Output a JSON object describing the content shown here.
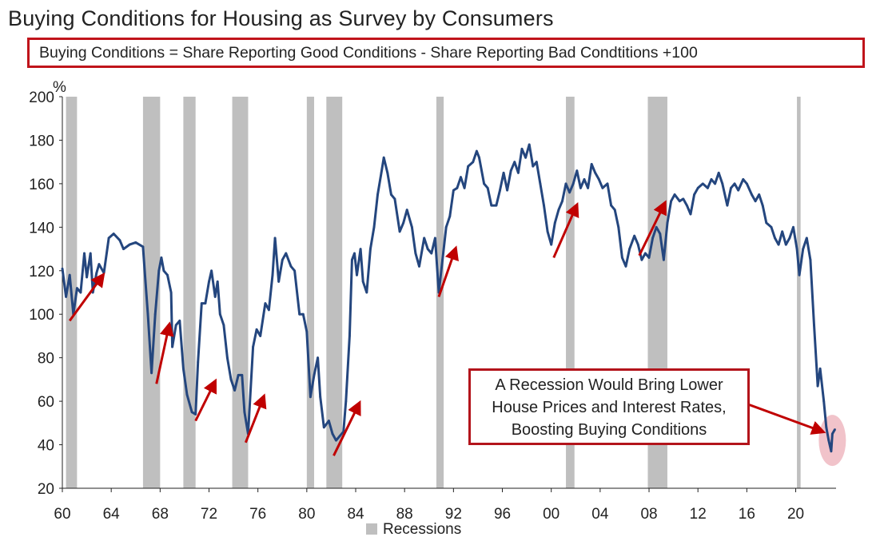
{
  "header": {
    "title": "Buying Conditions for Housing as Survey by Consumers",
    "formula": "Buying Conditions = Share Reporting Good Conditions - Share Reporting Bad Condtitions +100"
  },
  "annotation": {
    "lines": [
      "A Recession Would Bring Lower",
      "House Prices and Interest Rates,",
      "Boosting Buying Conditions"
    ]
  },
  "colors": {
    "line": "#24467e",
    "recession": "#bfbfbf",
    "arrow": "#c00000",
    "highlight": "#efbcc4",
    "annotation_border": "#b3141b"
  },
  "chart_data": {
    "type": "line",
    "title": "Buying Conditions for Housing as Survey by Consumers",
    "ylabel": "%",
    "ylim": [
      20,
      200
    ],
    "xlim": [
      1960,
      2023.3
    ],
    "yticks": [
      20,
      40,
      60,
      80,
      100,
      120,
      140,
      160,
      180,
      200
    ],
    "xticks": [
      {
        "value": 1960,
        "label": "60"
      },
      {
        "value": 1964,
        "label": "64"
      },
      {
        "value": 1968,
        "label": "68"
      },
      {
        "value": 1972,
        "label": "72"
      },
      {
        "value": 1976,
        "label": "76"
      },
      {
        "value": 1980,
        "label": "80"
      },
      {
        "value": 1984,
        "label": "84"
      },
      {
        "value": 1988,
        "label": "88"
      },
      {
        "value": 1992,
        "label": "92"
      },
      {
        "value": 1996,
        "label": "96"
      },
      {
        "value": 2000,
        "label": "00"
      },
      {
        "value": 2004,
        "label": "04"
      },
      {
        "value": 2008,
        "label": "08"
      },
      {
        "value": 2012,
        "label": "12"
      },
      {
        "value": 2016,
        "label": "16"
      },
      {
        "value": 2020,
        "label": "20"
      }
    ],
    "legend": [
      {
        "name": "Recessions",
        "style": "gray-square",
        "position": "bottom"
      }
    ],
    "recessions": [
      [
        1960.3,
        1961.2
      ],
      [
        1966.6,
        1968.0
      ],
      [
        1969.9,
        1970.9
      ],
      [
        1973.9,
        1975.2
      ],
      [
        1980.0,
        1980.6
      ],
      [
        1981.6,
        1982.9
      ],
      [
        1990.6,
        1991.2
      ],
      [
        2001.2,
        2001.9
      ],
      [
        2007.9,
        2009.5
      ],
      [
        2020.1,
        2020.4
      ]
    ],
    "series": [
      {
        "values": [
          [
            1960.0,
            121
          ],
          [
            1960.3,
            108
          ],
          [
            1960.6,
            118
          ],
          [
            1960.9,
            100
          ],
          [
            1961.2,
            112
          ],
          [
            1961.5,
            110
          ],
          [
            1961.8,
            128
          ],
          [
            1962.0,
            117
          ],
          [
            1962.3,
            128
          ],
          [
            1962.5,
            110
          ],
          [
            1962.8,
            119
          ],
          [
            1963.0,
            123
          ],
          [
            1963.4,
            119
          ],
          [
            1963.8,
            135
          ],
          [
            1964.2,
            137
          ],
          [
            1964.7,
            134
          ],
          [
            1965.0,
            130
          ],
          [
            1965.5,
            132
          ],
          [
            1966.0,
            133
          ],
          [
            1966.6,
            131
          ],
          [
            1966.8,
            115
          ],
          [
            1967.0,
            100
          ],
          [
            1967.3,
            73
          ],
          [
            1967.6,
            100
          ],
          [
            1967.9,
            120
          ],
          [
            1968.1,
            126
          ],
          [
            1968.3,
            120
          ],
          [
            1968.6,
            118
          ],
          [
            1968.9,
            110
          ],
          [
            1969.0,
            85
          ],
          [
            1969.3,
            95
          ],
          [
            1969.6,
            97
          ],
          [
            1969.9,
            75
          ],
          [
            1970.2,
            63
          ],
          [
            1970.6,
            55
          ],
          [
            1970.9,
            54
          ],
          [
            1971.1,
            78
          ],
          [
            1971.4,
            105
          ],
          [
            1971.7,
            105
          ],
          [
            1972.0,
            115
          ],
          [
            1972.2,
            120
          ],
          [
            1972.5,
            108
          ],
          [
            1972.7,
            115
          ],
          [
            1972.9,
            100
          ],
          [
            1973.2,
            95
          ],
          [
            1973.5,
            80
          ],
          [
            1973.8,
            70
          ],
          [
            1974.1,
            65
          ],
          [
            1974.4,
            72
          ],
          [
            1974.7,
            72
          ],
          [
            1974.9,
            55
          ],
          [
            1975.2,
            45
          ],
          [
            1975.4,
            65
          ],
          [
            1975.6,
            85
          ],
          [
            1975.9,
            93
          ],
          [
            1976.2,
            90
          ],
          [
            1976.6,
            105
          ],
          [
            1976.9,
            102
          ],
          [
            1977.2,
            118
          ],
          [
            1977.4,
            135
          ],
          [
            1977.7,
            115
          ],
          [
            1978.0,
            125
          ],
          [
            1978.3,
            128
          ],
          [
            1978.7,
            122
          ],
          [
            1979.0,
            120
          ],
          [
            1979.4,
            100
          ],
          [
            1979.7,
            100
          ],
          [
            1980.0,
            92
          ],
          [
            1980.3,
            62
          ],
          [
            1980.6,
            72
          ],
          [
            1980.9,
            80
          ],
          [
            1981.1,
            62
          ],
          [
            1981.4,
            48
          ],
          [
            1981.8,
            51
          ],
          [
            1982.1,
            45
          ],
          [
            1982.4,
            42
          ],
          [
            1982.7,
            44
          ],
          [
            1983.0,
            46
          ],
          [
            1983.2,
            60
          ],
          [
            1983.5,
            90
          ],
          [
            1983.7,
            125
          ],
          [
            1983.9,
            128
          ],
          [
            1984.1,
            118
          ],
          [
            1984.4,
            130
          ],
          [
            1984.6,
            115
          ],
          [
            1984.9,
            110
          ],
          [
            1985.2,
            130
          ],
          [
            1985.5,
            140
          ],
          [
            1985.8,
            155
          ],
          [
            1986.1,
            165
          ],
          [
            1986.3,
            172
          ],
          [
            1986.6,
            165
          ],
          [
            1986.9,
            155
          ],
          [
            1987.2,
            153
          ],
          [
            1987.6,
            138
          ],
          [
            1987.9,
            142
          ],
          [
            1988.2,
            148
          ],
          [
            1988.6,
            140
          ],
          [
            1988.9,
            128
          ],
          [
            1989.2,
            122
          ],
          [
            1989.6,
            135
          ],
          [
            1989.9,
            130
          ],
          [
            1990.2,
            128
          ],
          [
            1990.5,
            135
          ],
          [
            1990.8,
            110
          ],
          [
            1991.1,
            125
          ],
          [
            1991.4,
            140
          ],
          [
            1991.7,
            145
          ],
          [
            1992.0,
            157
          ],
          [
            1992.3,
            158
          ],
          [
            1992.6,
            163
          ],
          [
            1992.9,
            158
          ],
          [
            1993.2,
            168
          ],
          [
            1993.6,
            170
          ],
          [
            1993.9,
            175
          ],
          [
            1994.1,
            172
          ],
          [
            1994.5,
            160
          ],
          [
            1994.8,
            158
          ],
          [
            1995.1,
            150
          ],
          [
            1995.5,
            150
          ],
          [
            1995.8,
            157
          ],
          [
            1996.1,
            165
          ],
          [
            1996.4,
            157
          ],
          [
            1996.7,
            166
          ],
          [
            1997.0,
            170
          ],
          [
            1997.3,
            165
          ],
          [
            1997.6,
            176
          ],
          [
            1997.9,
            172
          ],
          [
            1998.2,
            178
          ],
          [
            1998.5,
            168
          ],
          [
            1998.8,
            170
          ],
          [
            1999.1,
            160
          ],
          [
            1999.4,
            150
          ],
          [
            1999.7,
            138
          ],
          [
            2000.0,
            132
          ],
          [
            2000.3,
            142
          ],
          [
            2000.6,
            148
          ],
          [
            2000.9,
            152
          ],
          [
            2001.2,
            160
          ],
          [
            2001.5,
            156
          ],
          [
            2001.8,
            160
          ],
          [
            2002.1,
            166
          ],
          [
            2002.4,
            158
          ],
          [
            2002.7,
            162
          ],
          [
            2003.0,
            158
          ],
          [
            2003.3,
            169
          ],
          [
            2003.6,
            165
          ],
          [
            2003.9,
            162
          ],
          [
            2004.2,
            158
          ],
          [
            2004.6,
            160
          ],
          [
            2004.9,
            150
          ],
          [
            2005.2,
            148
          ],
          [
            2005.5,
            140
          ],
          [
            2005.8,
            126
          ],
          [
            2006.1,
            122
          ],
          [
            2006.4,
            130
          ],
          [
            2006.8,
            136
          ],
          [
            2007.1,
            132
          ],
          [
            2007.4,
            125
          ],
          [
            2007.7,
            128
          ],
          [
            2008.0,
            126
          ],
          [
            2008.3,
            135
          ],
          [
            2008.6,
            140
          ],
          [
            2008.9,
            137
          ],
          [
            2009.2,
            125
          ],
          [
            2009.5,
            142
          ],
          [
            2009.8,
            152
          ],
          [
            2010.1,
            155
          ],
          [
            2010.5,
            152
          ],
          [
            2010.8,
            153
          ],
          [
            2011.1,
            150
          ],
          [
            2011.4,
            146
          ],
          [
            2011.7,
            155
          ],
          [
            2012.0,
            158
          ],
          [
            2012.4,
            160
          ],
          [
            2012.8,
            158
          ],
          [
            2013.1,
            162
          ],
          [
            2013.4,
            160
          ],
          [
            2013.7,
            165
          ],
          [
            2014.0,
            160
          ],
          [
            2014.4,
            150
          ],
          [
            2014.7,
            158
          ],
          [
            2015.0,
            160
          ],
          [
            2015.3,
            157
          ],
          [
            2015.7,
            162
          ],
          [
            2016.0,
            160
          ],
          [
            2016.4,
            155
          ],
          [
            2016.7,
            152
          ],
          [
            2017.0,
            155
          ],
          [
            2017.3,
            150
          ],
          [
            2017.6,
            142
          ],
          [
            2018.0,
            140
          ],
          [
            2018.3,
            135
          ],
          [
            2018.6,
            132
          ],
          [
            2018.9,
            138
          ],
          [
            2019.2,
            132
          ],
          [
            2019.5,
            135
          ],
          [
            2019.8,
            140
          ],
          [
            2020.1,
            130
          ],
          [
            2020.3,
            118
          ],
          [
            2020.6,
            130
          ],
          [
            2020.9,
            135
          ],
          [
            2021.2,
            125
          ],
          [
            2021.5,
            95
          ],
          [
            2021.8,
            67
          ],
          [
            2022.0,
            75
          ],
          [
            2022.3,
            60
          ],
          [
            2022.5,
            48
          ],
          [
            2022.7,
            42
          ],
          [
            2022.9,
            37
          ],
          [
            2023.0,
            45
          ],
          [
            2023.2,
            47
          ]
        ]
      }
    ],
    "annotations": [
      {
        "text": "A Recession Would Bring Lower House Prices and Interest Rates, Boosting Buying Conditions",
        "target": [
          2022.8,
          42
        ]
      }
    ],
    "arrows": [
      {
        "from": [
          1960.6,
          97
        ],
        "to": [
          1963.2,
          117
        ]
      },
      {
        "from": [
          1967.7,
          68
        ],
        "to": [
          1968.7,
          94
        ]
      },
      {
        "from": [
          1970.9,
          51
        ],
        "to": [
          1972.4,
          68
        ]
      },
      {
        "from": [
          1975.0,
          41
        ],
        "to": [
          1976.4,
          61
        ]
      },
      {
        "from": [
          1982.2,
          35
        ],
        "to": [
          1984.2,
          58
        ]
      },
      {
        "from": [
          1990.8,
          108
        ],
        "to": [
          1992.1,
          129
        ]
      },
      {
        "from": [
          2000.2,
          126
        ],
        "to": [
          2002.0,
          149
        ]
      },
      {
        "from": [
          2007.2,
          127
        ],
        "to": [
          2009.2,
          150
        ]
      }
    ]
  }
}
